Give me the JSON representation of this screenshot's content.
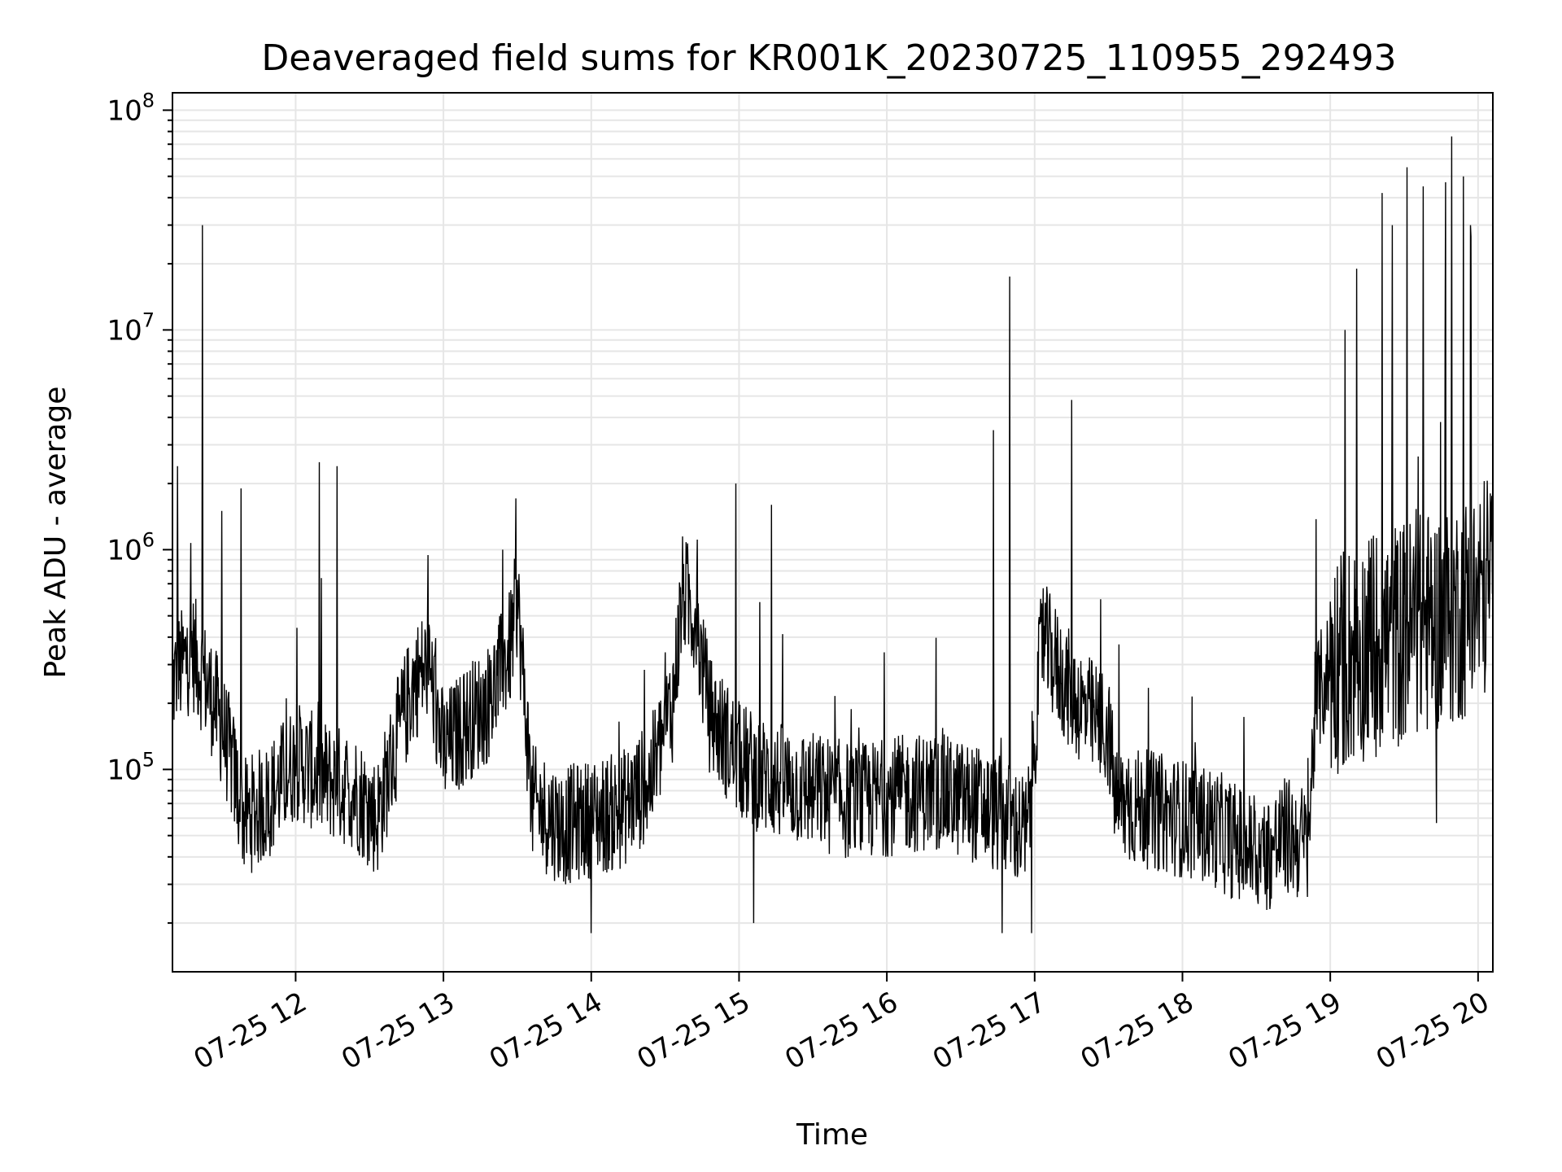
{
  "chart_data": {
    "type": "line",
    "title": "Deaveraged field sums for KR001K_20230725_110955_292493",
    "xlabel": "Time",
    "ylabel": "Peak ADU - average",
    "yscale": "log",
    "ylim": [
      12000,
      120000000
    ],
    "xlim": [
      "07-25 11:10",
      "07-25 20:06"
    ],
    "grid": true,
    "line_color": "#000000",
    "grid_color": "#e6e6e6",
    "xticks": [
      {
        "label": "07-25 12",
        "hour": 12
      },
      {
        "label": "07-25 13",
        "hour": 13
      },
      {
        "label": "07-25 14",
        "hour": 14
      },
      {
        "label": "07-25 15",
        "hour": 15
      },
      {
        "label": "07-25 16",
        "hour": 16
      },
      {
        "label": "07-25 17",
        "hour": 17
      },
      {
        "label": "07-25 18",
        "hour": 18
      },
      {
        "label": "07-25 19",
        "hour": 19
      },
      {
        "label": "07-25 20",
        "hour": 20
      }
    ],
    "yticks": [
      {
        "base": "10",
        "exp": "5",
        "value": 100000
      },
      {
        "base": "10",
        "exp": "6",
        "value": 1000000
      },
      {
        "base": "10",
        "exp": "7",
        "value": 10000000
      },
      {
        "base": "10",
        "exp": "8",
        "value": 100000000
      }
    ],
    "series": [
      {
        "x_hours": [
          11.17,
          11.3,
          11.45,
          11.55,
          11.65,
          11.8,
          12.0,
          12.2,
          12.4,
          12.55,
          12.7,
          12.8,
          12.9,
          13.0,
          13.15,
          13.3,
          13.45,
          13.5,
          13.6,
          13.8,
          14.0,
          14.2,
          14.4,
          14.55,
          14.62,
          14.7,
          14.8,
          15.0,
          15.2,
          15.5,
          15.8,
          16.0,
          16.3,
          16.6,
          16.8,
          16.95,
          17.05,
          17.2,
          17.35,
          17.5,
          17.55,
          17.8,
          18.0,
          18.2,
          18.4,
          18.55,
          18.7,
          18.85,
          18.9,
          19.0,
          19.2,
          19.4,
          19.6,
          19.8,
          20.0,
          20.1
        ],
        "y_values": [
          250000,
          350000,
          200000,
          120000,
          60000,
          70000,
          110000,
          90000,
          80000,
          60000,
          150000,
          250000,
          300000,
          120000,
          160000,
          200000,
          350000,
          600000,
          70000,
          55000,
          60000,
          65000,
          90000,
          200000,
          650000,
          500000,
          180000,
          110000,
          90000,
          80000,
          70000,
          75000,
          80000,
          70000,
          60000,
          50000,
          400000,
          250000,
          180000,
          150000,
          70000,
          65000,
          60000,
          55000,
          45000,
          40000,
          50000,
          45000,
          200000,
          300000,
          350000,
          400000,
          450000,
          500000,
          600000,
          800000
        ],
        "spikes": [
          {
            "hour": 11.2,
            "value": 2400000
          },
          {
            "hour": 11.37,
            "value": 30000000
          },
          {
            "hour": 11.5,
            "value": 1500000
          },
          {
            "hour": 11.63,
            "value": 1900000
          },
          {
            "hour": 12.16,
            "value": 2500000
          },
          {
            "hour": 12.28,
            "value": 2400000
          },
          {
            "hour": 13.4,
            "value": 1000000
          },
          {
            "hour": 14.98,
            "value": 2000000
          },
          {
            "hour": 15.22,
            "value": 1600000
          },
          {
            "hour": 15.1,
            "value": 20000
          },
          {
            "hour": 14.0,
            "value": 18000
          },
          {
            "hour": 16.72,
            "value": 3500000
          },
          {
            "hour": 16.83,
            "value": 17500000
          },
          {
            "hour": 16.78,
            "value": 18000
          },
          {
            "hour": 17.25,
            "value": 4800000
          },
          {
            "hour": 16.98,
            "value": 18000
          },
          {
            "hour": 19.1,
            "value": 10000000
          },
          {
            "hour": 19.18,
            "value": 19000000
          },
          {
            "hour": 19.35,
            "value": 42000000
          },
          {
            "hour": 19.52,
            "value": 55000000
          },
          {
            "hour": 19.63,
            "value": 45000000
          },
          {
            "hour": 19.78,
            "value": 47000000
          },
          {
            "hour": 19.82,
            "value": 76000000
          },
          {
            "hour": 19.9,
            "value": 50000000
          },
          {
            "hour": 19.95,
            "value": 30000000
          },
          {
            "hour": 19.72,
            "value": 57000
          },
          {
            "hour": 19.42,
            "value": 30000000
          }
        ]
      }
    ]
  }
}
